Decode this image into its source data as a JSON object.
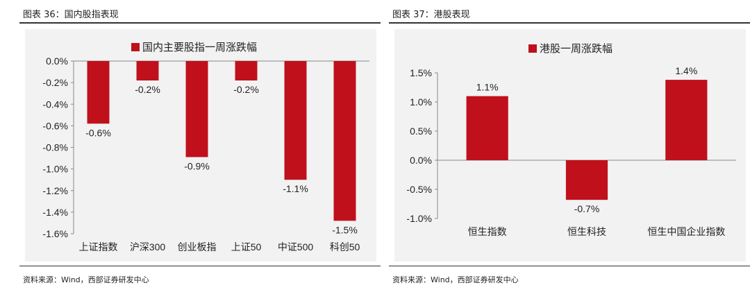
{
  "left_panel": {
    "figure_title": "图表 36：国内股指表现",
    "source": "资料来源：Wind，西部证券研发中心"
  },
  "right_panel": {
    "figure_title": "图表 37：港股表现",
    "source": "资料来源：Wind，西部证券研发中心"
  },
  "colors": {
    "bar": "#c0101c",
    "background": "#f2f2f2",
    "axis": "#888888"
  },
  "chart_data": [
    {
      "type": "bar",
      "categories": [
        "上证指数",
        "沪深300",
        "创业板指",
        "上证50",
        "中证500",
        "科创50"
      ],
      "series": [
        {
          "name": "国内主要股指一周涨跌幅",
          "values": [
            -0.58,
            -0.18,
            -0.89,
            -0.18,
            -1.1,
            -1.48
          ],
          "data_labels": [
            "-0.6%",
            "-0.2%",
            "-0.9%",
            "-0.2%",
            "-1.1%",
            "-1.5%"
          ]
        }
      ],
      "y_ticks": [
        "0.0%",
        "-0.2%",
        "-0.4%",
        "-0.6%",
        "-0.8%",
        "-1.0%",
        "-1.2%",
        "-1.4%",
        "-1.6%"
      ],
      "ylim": [
        -1.6,
        0.0
      ],
      "legend_position": "top-center",
      "grid": false
    },
    {
      "type": "bar",
      "categories": [
        "恒生指数",
        "恒生科技",
        "恒生中国企业指数"
      ],
      "series": [
        {
          "name": "港股一周涨跌幅",
          "values": [
            1.1,
            -0.68,
            1.38
          ],
          "data_labels": [
            "1.1%",
            "-0.7%",
            "1.4%"
          ]
        }
      ],
      "y_ticks": [
        "1.5%",
        "1.0%",
        "0.5%",
        "0.0%",
        "-0.5%",
        "-1.0%"
      ],
      "ylim": [
        -1.0,
        1.5
      ],
      "legend_position": "top-center",
      "grid": false
    }
  ]
}
